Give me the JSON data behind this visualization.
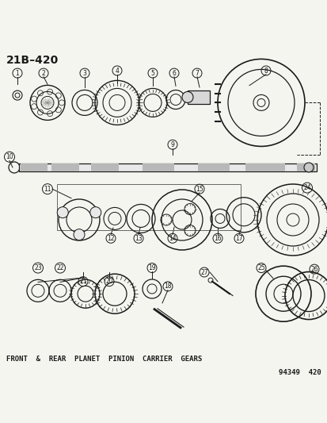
{
  "title": "21B–420",
  "caption": "FRONT  &  REAR  PLANET  PINION  CARRIER  GEARS",
  "footer": "94349  420",
  "bg_color": "#f5f5f0",
  "line_color": "#1a1a1a",
  "figsize": [
    4.14,
    5.33
  ],
  "dpi": 100
}
